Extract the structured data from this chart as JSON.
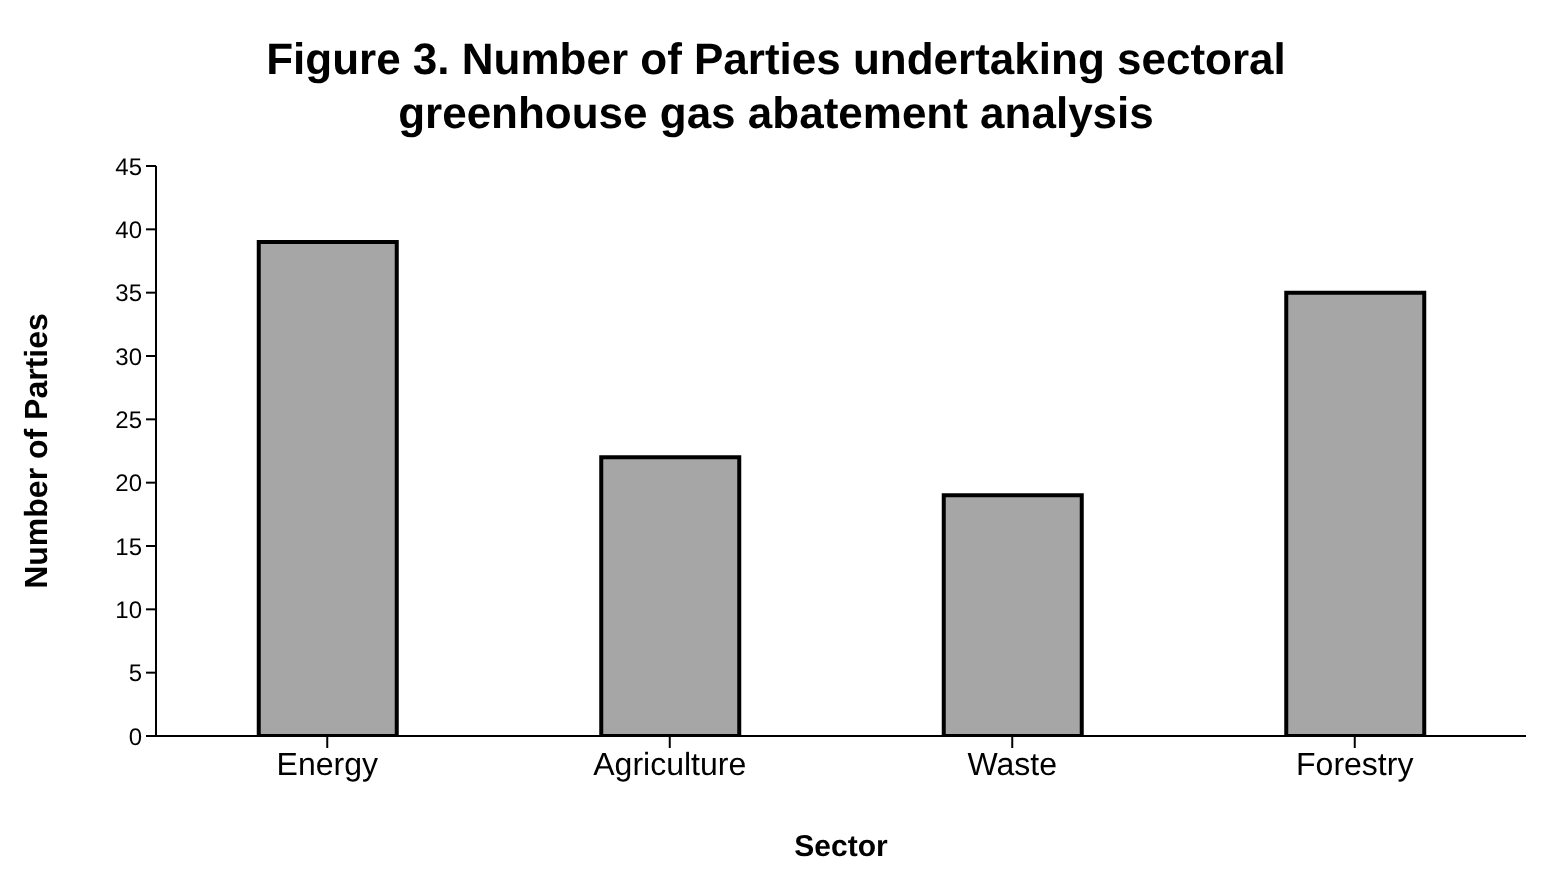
{
  "chart_data": {
    "type": "bar",
    "title": "Figure 3.  Number of Parties undertaking sectoral greenhouse gas abatement analysis",
    "xlabel": "Sector",
    "ylabel": "Number of Parties",
    "categories": [
      "Energy",
      "Agriculture",
      "Waste",
      "Forestry"
    ],
    "values": [
      39,
      22,
      19,
      35
    ],
    "color": "#a6a6a6",
    "ylim": [
      0,
      45
    ],
    "yticks": [
      0,
      5,
      10,
      15,
      20,
      25,
      30,
      35,
      40,
      45
    ],
    "grid": false
  }
}
